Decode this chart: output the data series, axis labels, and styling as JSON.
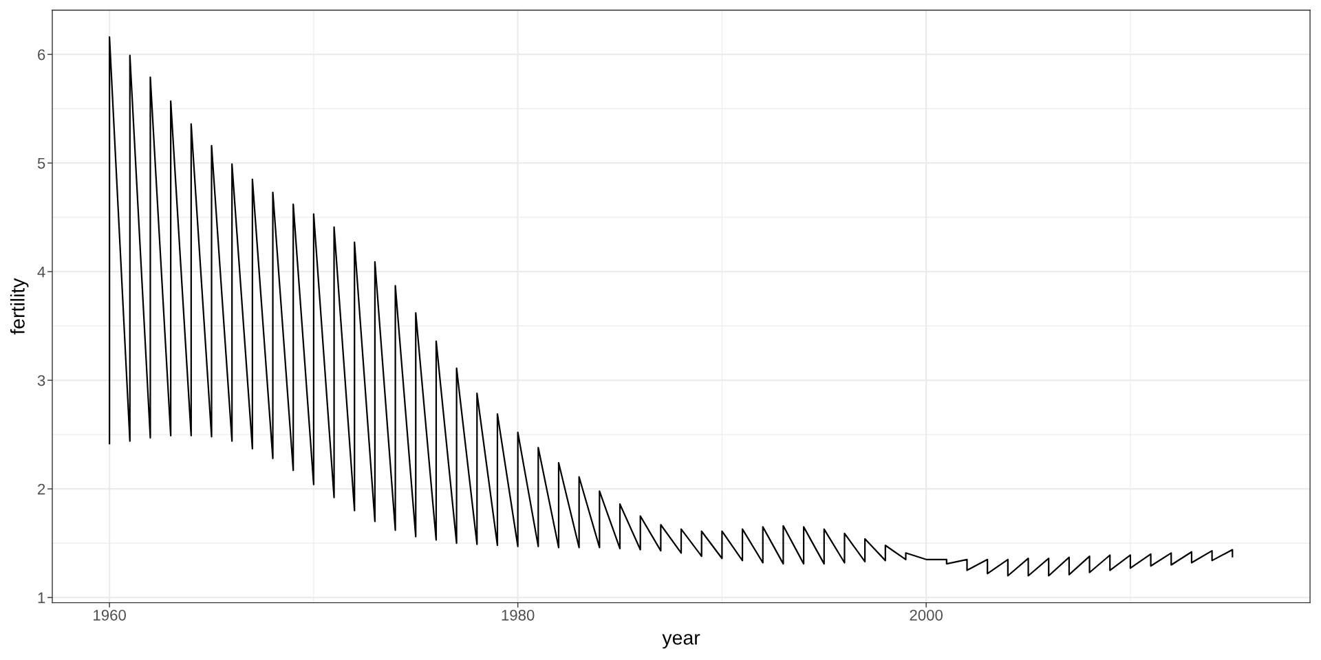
{
  "chart_data": {
    "type": "line",
    "xlabel": "year",
    "ylabel": "fertility",
    "x": [
      1960,
      1960,
      1961,
      1961,
      1962,
      1962,
      1963,
      1963,
      1964,
      1964,
      1965,
      1965,
      1966,
      1966,
      1967,
      1967,
      1968,
      1968,
      1969,
      1969,
      1970,
      1970,
      1971,
      1971,
      1972,
      1972,
      1973,
      1973,
      1974,
      1974,
      1975,
      1975,
      1976,
      1976,
      1977,
      1977,
      1978,
      1978,
      1979,
      1979,
      1980,
      1980,
      1981,
      1981,
      1982,
      1982,
      1983,
      1983,
      1984,
      1984,
      1985,
      1985,
      1986,
      1986,
      1987,
      1987,
      1988,
      1988,
      1989,
      1989,
      1990,
      1990,
      1991,
      1991,
      1992,
      1992,
      1993,
      1993,
      1994,
      1994,
      1995,
      1995,
      1996,
      1996,
      1997,
      1997,
      1998,
      1998,
      1999,
      1999,
      2000,
      2000,
      2001,
      2001,
      2002,
      2002,
      2003,
      2003,
      2004,
      2004,
      2005,
      2005,
      2006,
      2006,
      2007,
      2007,
      2008,
      2008,
      2009,
      2009,
      2010,
      2010,
      2011,
      2011,
      2012,
      2012,
      2013,
      2013,
      2014,
      2014,
      2015,
      2015
    ],
    "series": [
      {
        "color": "#000000",
        "values": [
          2.41,
          6.16,
          2.44,
          5.99,
          2.47,
          5.79,
          2.49,
          5.57,
          2.49,
          5.36,
          2.48,
          5.16,
          2.44,
          4.99,
          2.37,
          4.85,
          2.28,
          4.73,
          2.17,
          4.62,
          2.04,
          4.53,
          1.92,
          4.41,
          1.8,
          4.27,
          1.7,
          4.09,
          1.62,
          3.87,
          1.56,
          3.62,
          1.53,
          3.36,
          1.5,
          3.11,
          1.49,
          2.88,
          1.48,
          2.69,
          1.47,
          2.52,
          1.47,
          2.38,
          1.46,
          2.24,
          1.46,
          2.11,
          1.46,
          1.98,
          1.45,
          1.86,
          1.44,
          1.75,
          1.43,
          1.67,
          1.41,
          1.63,
          1.38,
          1.61,
          1.36,
          1.61,
          1.34,
          1.63,
          1.32,
          1.65,
          1.31,
          1.66,
          1.31,
          1.65,
          1.31,
          1.63,
          1.32,
          1.59,
          1.33,
          1.54,
          1.34,
          1.48,
          1.35,
          1.41,
          1.35,
          1.35,
          1.35,
          1.31,
          1.35,
          1.25,
          1.35,
          1.22,
          1.35,
          1.2,
          1.36,
          1.2,
          1.36,
          1.2,
          1.37,
          1.21,
          1.38,
          1.23,
          1.39,
          1.25,
          1.39,
          1.27,
          1.4,
          1.29,
          1.41,
          1.3,
          1.42,
          1.32,
          1.43,
          1.34,
          1.44,
          1.37
        ]
      }
    ],
    "xlim": [
      1957.2,
      2018.8
    ],
    "ylim": [
      0.952,
      6.408
    ],
    "xticks": [
      1960,
      1980,
      2000
    ],
    "yticks": [
      1,
      2,
      3,
      4,
      5,
      6
    ],
    "grid": true
  }
}
